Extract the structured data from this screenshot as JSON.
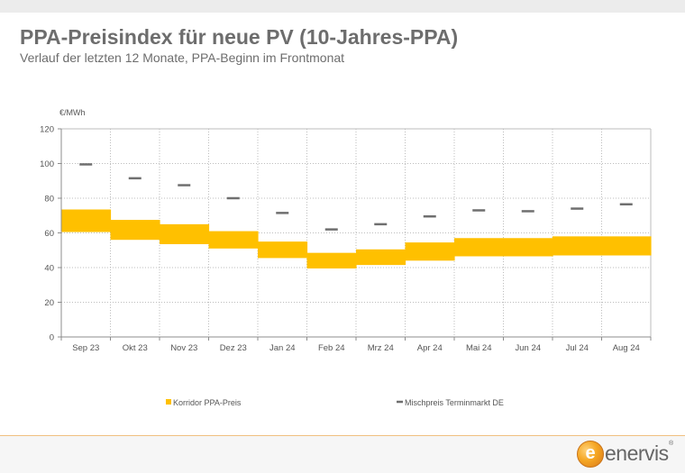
{
  "header": {
    "title": "PPA-Preisindex für neue PV (10-Jahres-PPA)",
    "subtitle": "Verlauf der letzten 12 Monate, PPA-Beginn im Frontmonat"
  },
  "logo": {
    "text": "enervis",
    "letter": "e",
    "registered": "®"
  },
  "chart_data": {
    "type": "bar",
    "yunit": "€/MWh",
    "ylim": [
      0,
      120
    ],
    "yticks": [
      0,
      20,
      40,
      60,
      80,
      100,
      120
    ],
    "grid": true,
    "legend_position": "bottom",
    "categories": [
      "Sep 23",
      "Okt 23",
      "Nov 23",
      "Dez 23",
      "Jan 24",
      "Feb 24",
      "Mrz 24",
      "Apr 24",
      "Mai 24",
      "Jun 24",
      "Jul 24",
      "Aug 24"
    ],
    "series": [
      {
        "name": "Korridor PPA-Preis",
        "kind": "range",
        "color": "#ffc000",
        "low": [
          60.5,
          56,
          53.5,
          51,
          45.5,
          39.5,
          41.5,
          44,
          46.5,
          46.5,
          47,
          47
        ],
        "high": [
          73.5,
          67.5,
          65,
          61,
          55,
          48.5,
          50.5,
          54.5,
          57,
          57,
          58,
          58
        ]
      },
      {
        "name": "Mischpreis Terminmarkt DE",
        "kind": "marker",
        "color": "#6f6f6f",
        "values": [
          99.5,
          91.5,
          87.5,
          80,
          71.5,
          62,
          65,
          69.5,
          73,
          72.5,
          74,
          76.5
        ]
      }
    ]
  }
}
